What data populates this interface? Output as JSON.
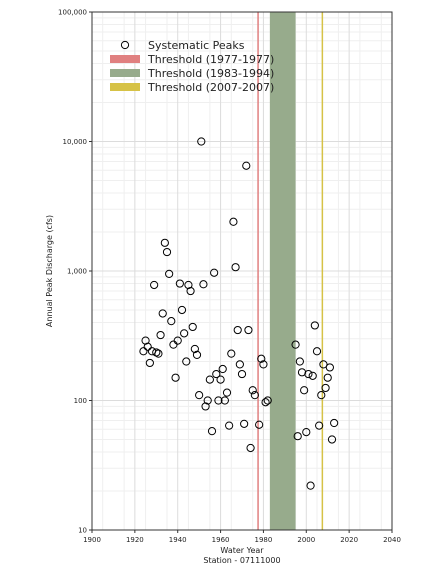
{
  "chart_data": {
    "type": "scatter",
    "xlabel": "Water Year",
    "subtitle": "Station - 07111000",
    "ylabel": "Annual Peak Discharge (cfs)",
    "xlim": [
      1900,
      2040
    ],
    "ylim": [
      10,
      100000
    ],
    "y_scale": "log",
    "x_ticks": [
      "1900",
      "1920",
      "1940",
      "1960",
      "1980",
      "2000",
      "2020",
      "2040"
    ],
    "y_ticks": [
      "10",
      "100",
      "1,000",
      "10,000",
      "100,000"
    ],
    "grid": true,
    "legend_position": "top-left",
    "thresholds": [
      {
        "name": "Threshold (1977-1977)",
        "start": 1977,
        "end": 1977,
        "color": "#e08080"
      },
      {
        "name": "Threshold (1983-1994)",
        "start": 1983,
        "end": 1994,
        "color": "#97ab8c"
      },
      {
        "name": "Threshold (2007-2007)",
        "start": 2007,
        "end": 2007,
        "color": "#d6c246"
      }
    ],
    "series": [
      {
        "name": "Systematic Peaks",
        "marker": "open-circle",
        "points": [
          [
            1924,
            240
          ],
          [
            1925,
            290
          ],
          [
            1926,
            260
          ],
          [
            1927,
            195
          ],
          [
            1928,
            240
          ],
          [
            1929,
            780
          ],
          [
            1930,
            235
          ],
          [
            1931,
            230
          ],
          [
            1932,
            320
          ],
          [
            1933,
            470
          ],
          [
            1934,
            1650
          ],
          [
            1935,
            1400
          ],
          [
            1936,
            950
          ],
          [
            1937,
            410
          ],
          [
            1938,
            270
          ],
          [
            1939,
            150
          ],
          [
            1940,
            290
          ],
          [
            1941,
            800
          ],
          [
            1942,
            500
          ],
          [
            1943,
            330
          ],
          [
            1944,
            200
          ],
          [
            1945,
            780
          ],
          [
            1946,
            700
          ],
          [
            1947,
            370
          ],
          [
            1948,
            250
          ],
          [
            1949,
            225
          ],
          [
            1950,
            110
          ],
          [
            1951,
            10000
          ],
          [
            1952,
            790
          ],
          [
            1953,
            90
          ],
          [
            1954,
            100
          ],
          [
            1955,
            145
          ],
          [
            1956,
            58
          ],
          [
            1957,
            970
          ],
          [
            1958,
            160
          ],
          [
            1959,
            100
          ],
          [
            1960,
            145
          ],
          [
            1961,
            175
          ],
          [
            1962,
            100
          ],
          [
            1963,
            115
          ],
          [
            1964,
            64
          ],
          [
            1965,
            230
          ],
          [
            1966,
            2400
          ],
          [
            1967,
            1070
          ],
          [
            1968,
            350
          ],
          [
            1969,
            190
          ],
          [
            1970,
            160
          ],
          [
            1971,
            66
          ],
          [
            1972,
            6500
          ],
          [
            1973,
            350
          ],
          [
            1974,
            43
          ],
          [
            1975,
            120
          ],
          [
            1976,
            110
          ],
          [
            1978,
            65
          ],
          [
            1979,
            210
          ],
          [
            1980,
            190
          ],
          [
            1981,
            97
          ],
          [
            1982,
            100
          ],
          [
            1995,
            270
          ],
          [
            1996,
            53
          ],
          [
            1997,
            200
          ],
          [
            1998,
            165
          ],
          [
            1999,
            120
          ],
          [
            2000,
            57
          ],
          [
            2001,
            160
          ],
          [
            2002,
            22
          ],
          [
            2003,
            155
          ],
          [
            2004,
            380
          ],
          [
            2005,
            240
          ],
          [
            2006,
            64
          ],
          [
            2007,
            110
          ],
          [
            2008,
            190
          ],
          [
            2009,
            125
          ],
          [
            2010,
            150
          ],
          [
            2011,
            180
          ],
          [
            2012,
            50
          ],
          [
            2013,
            67
          ]
        ]
      }
    ]
  }
}
